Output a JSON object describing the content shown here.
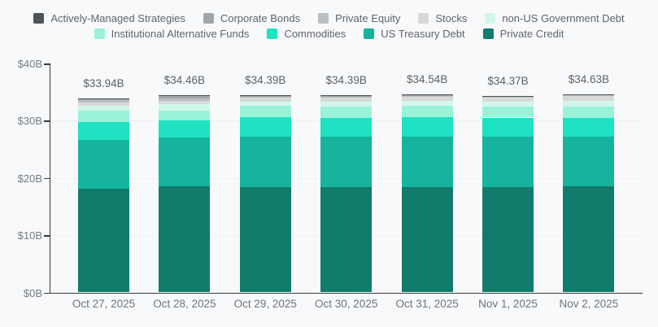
{
  "chart_data": {
    "type": "bar",
    "stacked": true,
    "title": "",
    "xlabel": "",
    "ylabel": "",
    "unit": "billions of dollars",
    "x": [
      "Oct 27, 2025",
      "Oct 28, 2025",
      "Oct 29, 2025",
      "Oct 30, 2025",
      "Oct 31, 2025",
      "Nov 1, 2025",
      "Nov 2, 2025"
    ],
    "totals_label": [
      "$33.94B",
      "$34.46B",
      "$34.39B",
      "$34.39B",
      "$34.54B",
      "$34.37B",
      "$34.63B"
    ],
    "totals_value": [
      33.94,
      34.46,
      34.39,
      34.39,
      34.54,
      34.37,
      34.63
    ],
    "series": [
      {
        "name": "Private Credit",
        "color": "#117b6c",
        "values": [
          18.1,
          18.5,
          18.4,
          18.45,
          18.45,
          18.4,
          18.5
        ]
      },
      {
        "name": "US Treasury Debt",
        "color": "#16b49c",
        "values": [
          8.5,
          8.6,
          8.8,
          8.75,
          8.8,
          8.8,
          8.7
        ]
      },
      {
        "name": "Commodities",
        "color": "#1ee2c2",
        "values": [
          3.2,
          2.94,
          3.4,
          3.35,
          3.35,
          3.35,
          3.3
        ]
      },
      {
        "name": "Institutional Alternative Funds",
        "color": "#9af2d9",
        "values": [
          1.9,
          1.7,
          1.95,
          1.95,
          1.95,
          1.9,
          1.9
        ]
      },
      {
        "name": "non-US Government Debt",
        "color": "#d1f7eb",
        "values": [
          0.95,
          1.15,
          0.75,
          0.8,
          0.85,
          0.85,
          1.1
        ]
      },
      {
        "name": "Stocks",
        "color": "#d7d9d9",
        "values": [
          0.55,
          0.55,
          0.7,
          0.7,
          0.75,
          0.7,
          0.75
        ]
      },
      {
        "name": "Private Equity",
        "color": "#bcbfc1",
        "values": [
          0.4,
          0.45,
          0.16,
          0.16,
          0.16,
          0.14,
          0.15
        ]
      },
      {
        "name": "Corporate Bonds",
        "color": "#a2a5a7",
        "values": [
          0.29,
          0.45,
          0.13,
          0.13,
          0.13,
          0.13,
          0.13
        ]
      },
      {
        "name": "Actively-Managed Strategies",
        "color": "#4e5358",
        "values": [
          0.05,
          0.12,
          0.1,
          0.1,
          0.1,
          0.1,
          0.1
        ]
      }
    ],
    "legend_rows": [
      [
        8,
        7,
        6,
        5,
        4
      ],
      [
        3,
        2,
        1,
        0
      ]
    ],
    "yticks": {
      "values": [
        0,
        10,
        20,
        30,
        40
      ],
      "labels": [
        "$0B",
        "$10B",
        "$20B",
        "$30B",
        "$40B"
      ]
    },
    "ylim": [
      0,
      40
    ],
    "grid": "horizontal gridlines at 10, 20, 30",
    "legend_position": "top-center"
  },
  "colors": {
    "background": "#f8f9fa",
    "axis": "#37393c",
    "gridline": "#eef0f1",
    "tick_label": "#767c83",
    "total_label": "#5c6166",
    "legend_label": "#5f646a"
  }
}
